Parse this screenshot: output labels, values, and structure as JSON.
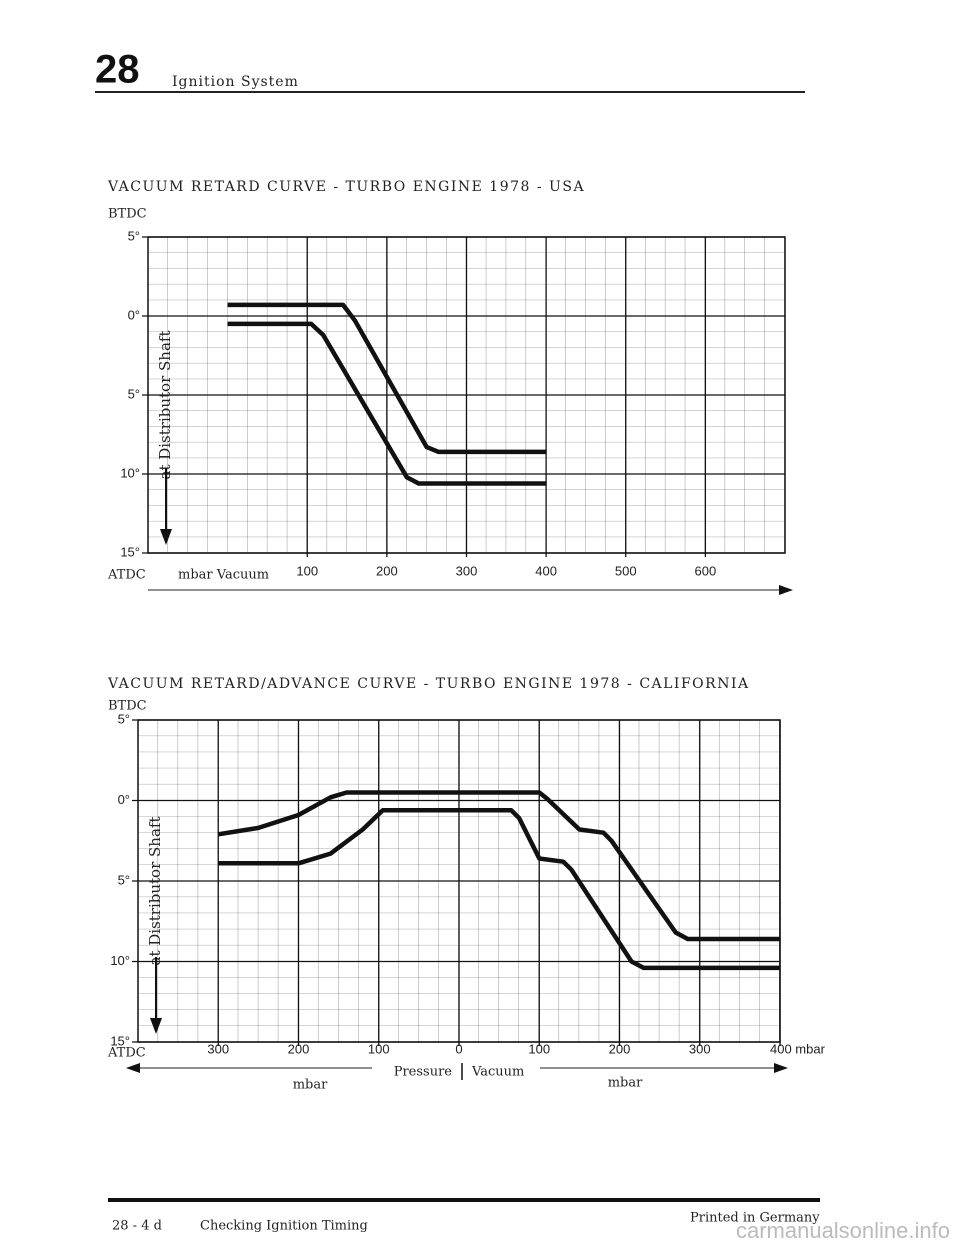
{
  "header": {
    "number": "28",
    "title": "Ignition System"
  },
  "chart_data": [
    {
      "type": "line",
      "title": "VACUUM RETARD CURVE - TURBO ENGINE 1978 - USA",
      "y_top_label": "BTDC",
      "y_bottom_label": "ATDC",
      "y_axis_label": "at Distributor Shaft",
      "x_axis_labels": [
        "mbar Vacuum"
      ],
      "xlim": [
        -100,
        700
      ],
      "ylim": [
        -15,
        5
      ],
      "xticks": [
        100,
        200,
        300,
        400,
        500,
        600
      ],
      "yticks": [
        {
          "value": 5,
          "label": "5°"
        },
        {
          "value": 0,
          "label": "0°"
        },
        {
          "value": -5,
          "label": "5°"
        },
        {
          "value": -10,
          "label": "10°"
        },
        {
          "value": -15,
          "label": "15°"
        }
      ],
      "grid": true,
      "series": [
        {
          "color": "#111111",
          "x": [
            0,
            145,
            160,
            250,
            265,
            400
          ],
          "values": [
            0.7,
            0.7,
            -0.3,
            -8.3,
            -8.6,
            -8.6
          ]
        },
        {
          "color": "#111111",
          "x": [
            0,
            105,
            120,
            225,
            240,
            400
          ],
          "values": [
            -0.5,
            -0.5,
            -1.2,
            -10.2,
            -10.6,
            -10.6
          ]
        }
      ]
    },
    {
      "type": "line",
      "title": "VACUUM RETARD/ADVANCE CURVE - TURBO ENGINE 1978 - CALIFORNIA",
      "y_top_label": "BTDC",
      "y_bottom_label": "ATDC",
      "y_axis_label": "at Distributor Shaft",
      "x_axis_labels": [
        "Pressure",
        "Vacuum",
        "mbar",
        "mbar"
      ],
      "xlim": [
        -400,
        400
      ],
      "ylim": [
        -15,
        5
      ],
      "xticks": [
        {
          "value": -300,
          "label": "300"
        },
        {
          "value": -200,
          "label": "200"
        },
        {
          "value": -100,
          "label": "100"
        },
        0,
        100,
        200,
        300,
        {
          "value": 400,
          "label": "400 mbar"
        }
      ],
      "yticks": [
        {
          "value": 5,
          "label": "5°"
        },
        {
          "value": 0,
          "label": "0°"
        },
        {
          "value": -5,
          "label": "5°"
        },
        {
          "value": -10,
          "label": "10°"
        },
        {
          "value": -15,
          "label": "15°"
        }
      ],
      "grid": true,
      "series": [
        {
          "color": "#111111",
          "x": [
            -300,
            -250,
            -200,
            -160,
            -140,
            100,
            110,
            150,
            180,
            190,
            270,
            285,
            400
          ],
          "values": [
            -2.1,
            -1.7,
            -0.9,
            0.2,
            0.5,
            0.5,
            0.1,
            -1.8,
            -2.0,
            -2.5,
            -8.2,
            -8.6,
            -8.6
          ]
        },
        {
          "color": "#111111",
          "x": [
            -300,
            -200,
            -160,
            -120,
            -95,
            65,
            75,
            100,
            130,
            140,
            215,
            230,
            400
          ],
          "values": [
            -3.9,
            -3.9,
            -3.3,
            -1.8,
            -0.6,
            -0.6,
            -1.1,
            -3.6,
            -3.8,
            -4.3,
            -10.0,
            -10.4,
            -10.4
          ]
        }
      ]
    }
  ],
  "footer": {
    "page": "28 - 4 d",
    "section": "Checking Ignition Timing",
    "printed": "Printed in Germany"
  },
  "watermark": "carmanualsonline.info"
}
